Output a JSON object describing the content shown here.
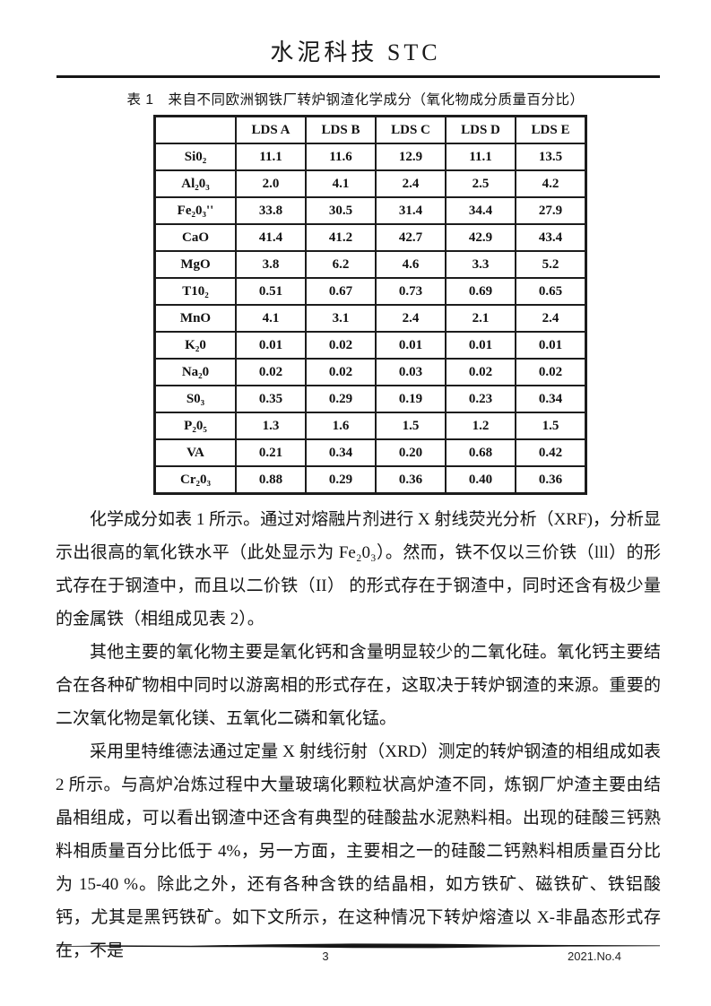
{
  "header": {
    "journal_title": "水泥科技 STC"
  },
  "table": {
    "caption": "表 1　来自不同欧洲钢铁厂转炉钢渣化学成分（氧化物成分质量百分比）",
    "columns": [
      "",
      "LDS A",
      "LDS B",
      "LDS C",
      "LDS D",
      "LDS E"
    ],
    "rows": [
      {
        "label": "Si0₂",
        "values": [
          "11.1",
          "11.6",
          "12.9",
          "11.1",
          "13.5"
        ]
      },
      {
        "label": "Al₂0₃",
        "values": [
          "2.0",
          "4.1",
          "2.4",
          "2.5",
          "4.2"
        ]
      },
      {
        "label": "Fe₂0₃''",
        "values": [
          "33.8",
          "30.5",
          "31.4",
          "34.4",
          "27.9"
        ]
      },
      {
        "label": "CaO",
        "values": [
          "41.4",
          "41.2",
          "42.7",
          "42.9",
          "43.4"
        ]
      },
      {
        "label": "MgO",
        "values": [
          "3.8",
          "6.2",
          "4.6",
          "3.3",
          "5.2"
        ]
      },
      {
        "label": "T10₂",
        "values": [
          "0.51",
          "0.67",
          "0.73",
          "0.69",
          "0.65"
        ]
      },
      {
        "label": "MnO",
        "values": [
          "4.1",
          "3.1",
          "2.4",
          "2.1",
          "2.4"
        ]
      },
      {
        "label": "K₂0",
        "values": [
          "0.01",
          "0.02",
          "0.01",
          "0.01",
          "0.01"
        ]
      },
      {
        "label": "Na₂0",
        "values": [
          "0.02",
          "0.02",
          "0.03",
          "0.02",
          "0.02"
        ]
      },
      {
        "label": "S0₃",
        "values": [
          "0.35",
          "0.29",
          "0.19",
          "0.23",
          "0.34"
        ]
      },
      {
        "label": "P₂0₅",
        "values": [
          "1.3",
          "1.6",
          "1.5",
          "1.2",
          "1.5"
        ]
      },
      {
        "label": "VA",
        "values": [
          "0.21",
          "0.34",
          "0.20",
          "0.68",
          "0.42"
        ]
      },
      {
        "label": "Cr₂0₃",
        "values": [
          "0.88",
          "0.29",
          "0.36",
          "0.40",
          "0.36"
        ]
      }
    ]
  },
  "paragraphs": [
    "化学成分如表 1 所示。通过对熔融片剂进行 X 射线荧光分析（XRF)，分析显示出很高的氧化铁水平（此处显示为 Fe₂0₃）。然而，铁不仅以三价铁（lll）的形式存在于钢渣中，而且以二价铁（II） 的形式存在于钢渣中，同时还含有极少量的金属铁（相组成见表 2）。",
    "其他主要的氧化物主要是氧化钙和含量明显较少的二氧化硅。氧化钙主要结合在各种矿物相中同时以游离相的形式存在，这取决于转炉钢渣的来源。重要的二次氧化物是氧化镁、五氧化二磷和氧化锰。",
    "采用里特维德法通过定量 X 射线衍射（XRD）测定的转炉钢渣的相组成如表 2 所示。与高炉冶炼过程中大量玻璃化颗粒状高炉渣不同，炼钢厂炉渣主要由结晶相组成，可以看出钢渣中还含有典型的硅酸盐水泥熟料相。出现的硅酸三钙熟料相质量百分比低于 4%，另一方面，主要相之一的硅酸二钙熟料相质量百分比为 15-40 %。除此之外，还有各种含铁的结晶相，如方铁矿、磁铁矿、铁铝酸钙，尤其是黑钙铁矿。如下文所示，在这种情况下转炉熔渣以 X-非晶态形式存在，不是"
  ],
  "footer": {
    "page_number": "3",
    "issue": "2021.No.4"
  },
  "colors": {
    "ink": "#111111",
    "paper": "#ffffff"
  }
}
